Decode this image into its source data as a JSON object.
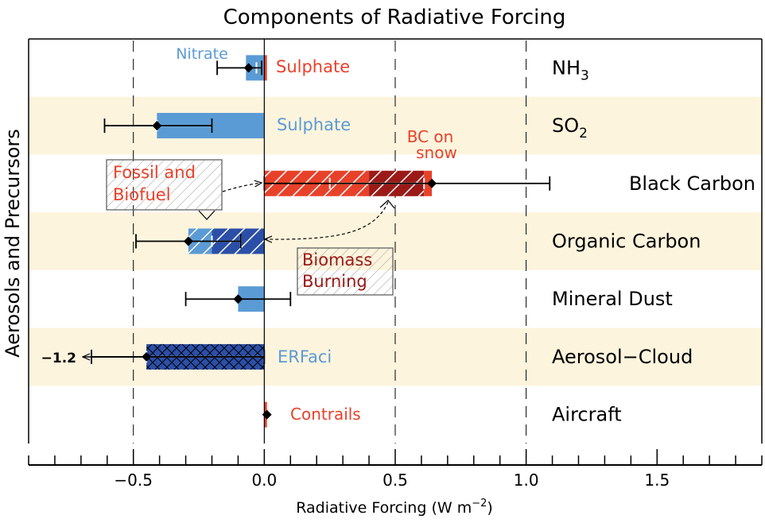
{
  "chart_data": {
    "type": "bar",
    "orientation": "horizontal",
    "title": "Components of Radiative Forcing",
    "xlabel": "Radiative Forcing (W m",
    "xlabel_superscript": "−2",
    "xlabel_suffix": ")",
    "ylabel": "Aerosols and Precursors",
    "xlim": [
      -0.9,
      1.9
    ],
    "xticks": [
      {
        "value": -0.5,
        "label": "−0.5"
      },
      {
        "value": 0.0,
        "label": "0.0"
      },
      {
        "value": 0.5,
        "label": "0.5"
      },
      {
        "value": 1.0,
        "label": "1.0"
      },
      {
        "value": 1.5,
        "label": "1.5"
      }
    ],
    "dashed_gridlines_at": [
      -0.5,
      0.5,
      1.0
    ],
    "row_shading_color": "#fdf4dd",
    "colors": {
      "blue": "#5b9bd5",
      "dark_blue": "#2b4fa8",
      "red": "#e8412a",
      "dark_red": "#9b1a17",
      "label_blue": "#5b9bd5",
      "label_red": "#e8412a",
      "label_dark_red": "#9b1a17"
    },
    "categories": [
      {
        "name": "NH",
        "sub": "3",
        "shaded": false
      },
      {
        "name": "SO",
        "sub": "2",
        "shaded": true
      },
      {
        "name": "Black Carbon",
        "sub": "",
        "shaded": false
      },
      {
        "name": "Organic Carbon",
        "sub": "",
        "shaded": true
      },
      {
        "name": "Mineral Dust",
        "sub": "",
        "shaded": false
      },
      {
        "name": "Aerosol−Cloud",
        "sub": "",
        "shaded": true
      },
      {
        "name": "Aircraft",
        "sub": "",
        "shaded": false
      }
    ],
    "segments": [
      {
        "row": 0,
        "from": -0.07,
        "to": 0.0,
        "color": "blue",
        "pattern": "none"
      },
      {
        "row": 0,
        "from": 0.0,
        "to": 0.01,
        "color": "red",
        "pattern": "none"
      },
      {
        "row": 1,
        "from": -0.41,
        "to": 0.0,
        "color": "blue",
        "pattern": "none"
      },
      {
        "row": 2,
        "from": 0.0,
        "to": 0.4,
        "color": "red",
        "pattern": "hatch"
      },
      {
        "row": 2,
        "from": 0.4,
        "to": 0.61,
        "color": "dark_red",
        "pattern": "hatch"
      },
      {
        "row": 2,
        "from": 0.61,
        "to": 0.64,
        "color": "red",
        "pattern": "none"
      },
      {
        "row": 3,
        "from": -0.2,
        "to": 0.0,
        "color": "dark_blue",
        "pattern": "hatch"
      },
      {
        "row": 3,
        "from": -0.29,
        "to": -0.2,
        "color": "blue",
        "pattern": "hatch"
      },
      {
        "row": 4,
        "from": -0.1,
        "to": 0.0,
        "color": "blue",
        "pattern": "none"
      },
      {
        "row": 5,
        "from": -0.45,
        "to": 0.0,
        "color": "dark_blue",
        "pattern": "cross"
      },
      {
        "row": 6,
        "from": 0.0,
        "to": 0.01,
        "color": "red",
        "pattern": "none"
      }
    ],
    "inner_ranges": [
      {
        "row": 0,
        "low": -0.03,
        "high": -0.01
      },
      {
        "row": 1,
        "low": -0.41,
        "high": -0.2
      },
      {
        "row": 2,
        "low": 0.25,
        "high": 0.61
      },
      {
        "row": 3,
        "low": -0.2,
        "high": -0.09
      },
      {
        "row": 5,
        "low": -0.45,
        "high": 0.0
      }
    ],
    "totals": [
      {
        "row": 0,
        "value": -0.06,
        "low": -0.18,
        "high": -0.01
      },
      {
        "row": 1,
        "value": -0.41,
        "low": -0.61,
        "high": -0.2
      },
      {
        "row": 2,
        "value": 0.64,
        "low": 0.0,
        "high": 1.09
      },
      {
        "row": 3,
        "value": -0.29,
        "low": -0.49,
        "high": -0.09
      },
      {
        "row": 4,
        "value": -0.1,
        "low": -0.3,
        "high": 0.1
      },
      {
        "row": 5,
        "value": -0.45,
        "low": -0.66,
        "high": 0.0
      },
      {
        "row": 6,
        "value": 0.01,
        "low": 0.01,
        "high": 0.01
      }
    ],
    "annotations": {
      "nitrate": "Nitrate",
      "nh3_sulphate": "Sulphate",
      "so2_sulphate": "Sulphate",
      "bc_on_snow_line1": "BC on",
      "bc_on_snow_line2": "snow",
      "fossil_line1": "Fossil and",
      "fossil_line2": "Biofuel",
      "biomass_line1": "Biomass",
      "biomass_line2": "Burning",
      "erfaci": "ERFaci",
      "contrails": "Contrails",
      "offscale": "−1.2"
    }
  }
}
